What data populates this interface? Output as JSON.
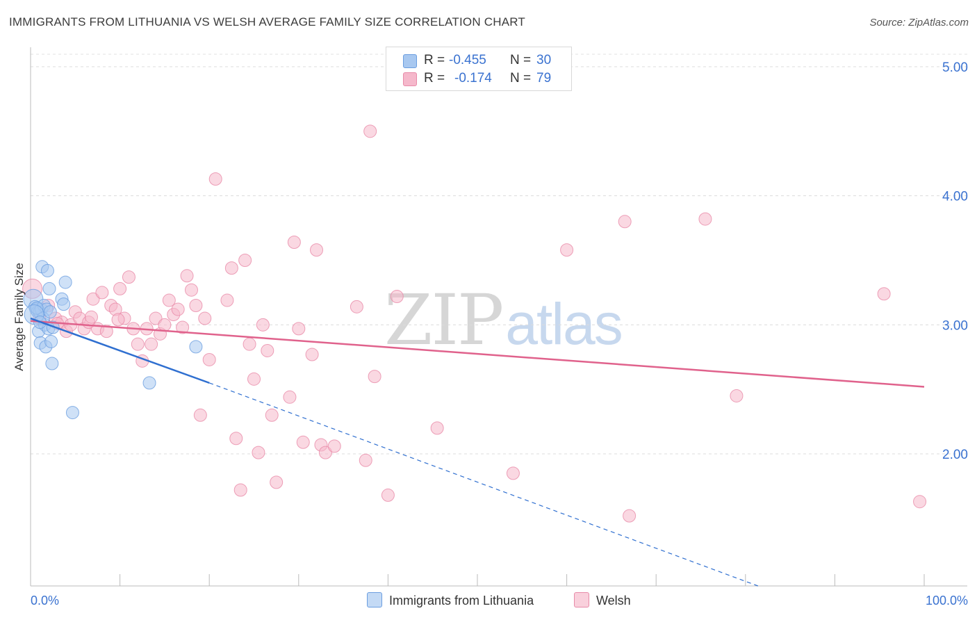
{
  "header": {
    "title": "IMMIGRANTS FROM LITHUANIA VS WELSH AVERAGE FAMILY SIZE CORRELATION CHART",
    "source": "Source: ZipAtlas.com"
  },
  "watermark": {
    "part1": "ZIP",
    "part2": "atlas"
  },
  "legend": {
    "rows": [
      {
        "r_label": "R =",
        "r_value": "-0.455",
        "n_label": "N =",
        "n_value": "30",
        "color": "#a8c8f0"
      },
      {
        "r_label": "R =",
        "r_value": "-0.174",
        "n_label": "N =",
        "n_value": "79",
        "color": "#f5b8cb"
      }
    ]
  },
  "bottom_legend": {
    "items": [
      {
        "label": "Immigrants from Lithuania",
        "color": "#a8c8f0"
      },
      {
        "label": "Welsh",
        "color": "#f5b8cb"
      }
    ]
  },
  "chart_data": {
    "type": "scatter",
    "title": "IMMIGRANTS FROM LITHUANIA VS WELSH AVERAGE FAMILY SIZE CORRELATION CHART",
    "xlabel": "",
    "ylabel": "Average Family Size",
    "xlim": [
      0,
      100
    ],
    "ylim": [
      1.0,
      5.1
    ],
    "x_tick_labels": [
      "0.0%",
      "100.0%"
    ],
    "y_ticks": [
      2.0,
      3.0,
      4.0,
      5.0
    ],
    "y_tick_labels": [
      "2.00",
      "3.00",
      "4.00",
      "5.00"
    ],
    "grid": "horizontal dashed",
    "legend_position": "top-center",
    "series": [
      {
        "name": "Immigrants from Lithuania",
        "color": "#6a9de0",
        "fill": "#a8c8f0",
        "line_color": "#2f6fd0",
        "points": [
          [
            0.3,
            3.2
          ],
          [
            0.5,
            3.14
          ],
          [
            0.6,
            3.12
          ],
          [
            0.8,
            3.1
          ],
          [
            1.0,
            3.1
          ],
          [
            1.2,
            3.12
          ],
          [
            1.5,
            3.15
          ],
          [
            1.8,
            3.12
          ],
          [
            0.9,
            2.95
          ],
          [
            1.3,
            3.45
          ],
          [
            1.6,
            3.0
          ],
          [
            2.0,
            2.97
          ],
          [
            2.5,
            2.98
          ],
          [
            1.1,
            2.86
          ],
          [
            1.7,
            2.83
          ],
          [
            2.3,
            2.87
          ],
          [
            1.9,
            3.42
          ],
          [
            2.1,
            3.28
          ],
          [
            2.4,
            2.7
          ],
          [
            3.5,
            3.2
          ],
          [
            3.7,
            3.16
          ],
          [
            3.9,
            3.33
          ],
          [
            0.7,
            3.13
          ],
          [
            1.4,
            3.05
          ],
          [
            2.2,
            3.1
          ],
          [
            4.7,
            2.32
          ],
          [
            13.3,
            2.55
          ],
          [
            18.5,
            2.83
          ],
          [
            0.4,
            3.08
          ],
          [
            1.05,
            3.02
          ]
        ],
        "trend_solid": [
          [
            0.0,
            3.05
          ],
          [
            20.0,
            2.55
          ]
        ],
        "trend_dashed": [
          [
            20.0,
            2.55
          ],
          [
            100.0,
            0.5
          ]
        ]
      },
      {
        "name": "Welsh",
        "color": "#e88aa8",
        "fill": "#f5b8cb",
        "line_color": "#e0628c",
        "points": [
          [
            0.2,
            3.28
          ],
          [
            1.0,
            3.05
          ],
          [
            2.0,
            3.15
          ],
          [
            2.8,
            3.05
          ],
          [
            3.5,
            3.02
          ],
          [
            4.0,
            2.95
          ],
          [
            4.5,
            3.0
          ],
          [
            5.0,
            3.1
          ],
          [
            5.5,
            3.05
          ],
          [
            6.0,
            2.97
          ],
          [
            6.5,
            3.02
          ],
          [
            7.0,
            3.2
          ],
          [
            7.5,
            2.97
          ],
          [
            8.0,
            3.25
          ],
          [
            8.5,
            2.95
          ],
          [
            9.0,
            3.15
          ],
          [
            9.5,
            3.12
          ],
          [
            10.0,
            3.28
          ],
          [
            10.5,
            3.05
          ],
          [
            11.0,
            3.37
          ],
          [
            11.5,
            2.97
          ],
          [
            12.0,
            2.85
          ],
          [
            12.5,
            2.72
          ],
          [
            13.0,
            2.97
          ],
          [
            13.5,
            2.85
          ],
          [
            14.0,
            3.05
          ],
          [
            14.5,
            2.93
          ],
          [
            15.0,
            3.0
          ],
          [
            15.5,
            3.19
          ],
          [
            16.0,
            3.08
          ],
          [
            17.0,
            2.98
          ],
          [
            17.5,
            3.38
          ],
          [
            18.0,
            3.27
          ],
          [
            18.5,
            3.15
          ],
          [
            19.0,
            2.3
          ],
          [
            19.5,
            3.05
          ],
          [
            20.0,
            2.73
          ],
          [
            20.7,
            4.13
          ],
          [
            22.0,
            3.19
          ],
          [
            22.5,
            3.44
          ],
          [
            23.0,
            2.12
          ],
          [
            23.5,
            1.72
          ],
          [
            24.0,
            3.5
          ],
          [
            24.5,
            2.85
          ],
          [
            25.0,
            2.58
          ],
          [
            25.5,
            2.01
          ],
          [
            26.5,
            2.8
          ],
          [
            27.0,
            2.3
          ],
          [
            27.5,
            1.78
          ],
          [
            29.0,
            2.44
          ],
          [
            29.5,
            3.64
          ],
          [
            30.0,
            2.97
          ],
          [
            30.5,
            2.09
          ],
          [
            31.5,
            2.77
          ],
          [
            32.0,
            3.58
          ],
          [
            32.5,
            2.07
          ],
          [
            33.0,
            2.01
          ],
          [
            34.0,
            2.06
          ],
          [
            36.5,
            3.14
          ],
          [
            37.5,
            1.95
          ],
          [
            38.0,
            4.5
          ],
          [
            38.5,
            2.6
          ],
          [
            40.0,
            1.68
          ],
          [
            41.0,
            3.22
          ],
          [
            45.5,
            2.2
          ],
          [
            47.0,
            5.0
          ],
          [
            54.0,
            1.85
          ],
          [
            60.0,
            3.58
          ],
          [
            66.5,
            3.8
          ],
          [
            67.0,
            1.52
          ],
          [
            75.5,
            3.82
          ],
          [
            79.0,
            2.45
          ],
          [
            95.5,
            3.24
          ],
          [
            99.5,
            1.63
          ],
          [
            3.0,
            3.01
          ],
          [
            6.8,
            3.06
          ],
          [
            16.5,
            3.12
          ],
          [
            26.0,
            3.0
          ],
          [
            9.8,
            3.04
          ]
        ],
        "trend_solid": [
          [
            0.0,
            3.03
          ],
          [
            100.0,
            2.52
          ]
        ]
      }
    ]
  }
}
